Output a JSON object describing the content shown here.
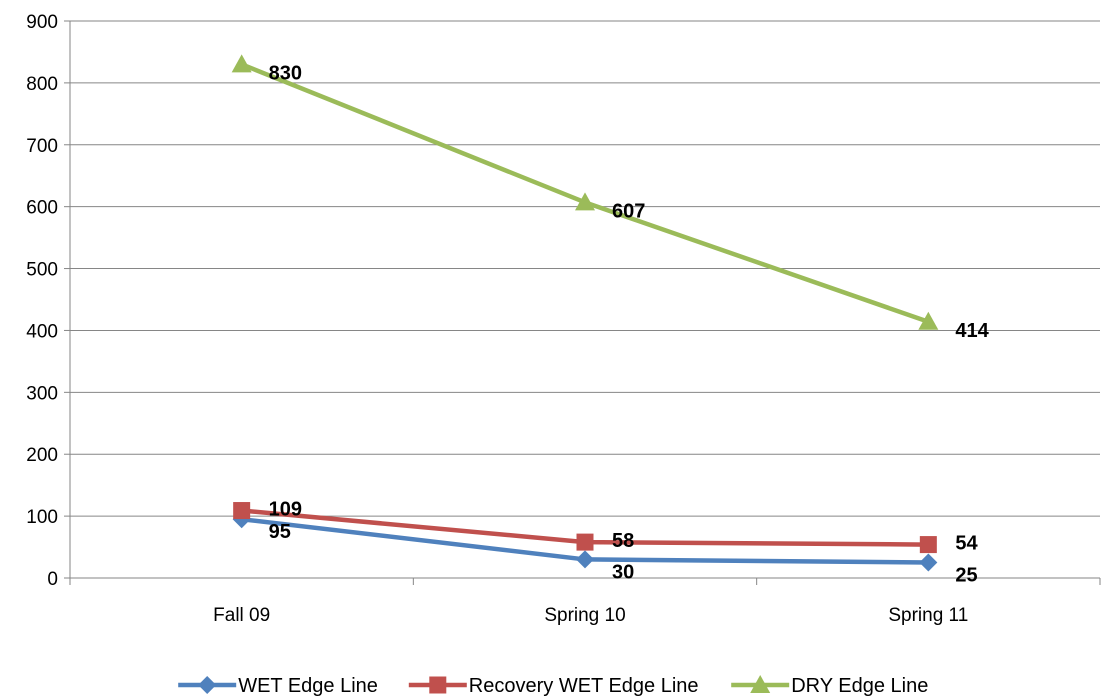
{
  "chart_data": {
    "type": "line",
    "title": "",
    "xlabel": "",
    "ylabel": "",
    "categories": [
      "Fall 09",
      "Spring 10",
      "Spring 11"
    ],
    "ylim": [
      0,
      900
    ],
    "yticks": [
      0,
      100,
      200,
      300,
      400,
      500,
      600,
      700,
      800,
      900
    ],
    "grid": true,
    "legend": "bottom",
    "series": [
      {
        "name": "WET Edge Line",
        "values": [
          95,
          30,
          25
        ],
        "color": "#4F81BD",
        "marker": "diamond"
      },
      {
        "name": "Recovery WET Edge Line",
        "values": [
          109,
          58,
          54
        ],
        "color": "#C0504D",
        "marker": "square"
      },
      {
        "name": "DRY Edge Line",
        "values": [
          830,
          607,
          414
        ],
        "color": "#9BBB59",
        "marker": "triangle"
      }
    ]
  }
}
